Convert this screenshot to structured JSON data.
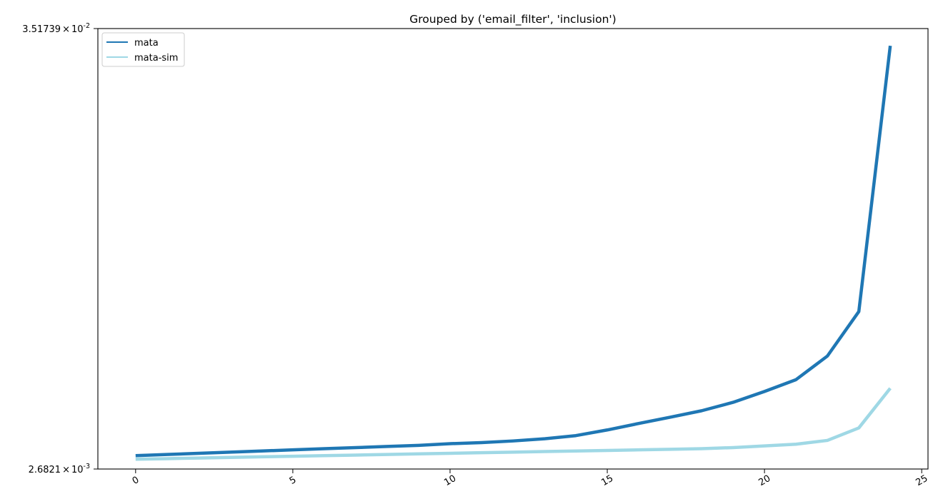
{
  "chart_data": {
    "type": "line",
    "title": "Grouped by ('email_filter', 'inclusion')",
    "xlabel": "",
    "ylabel": "",
    "yscale": "log",
    "xlim": [
      -1.2,
      25.2
    ],
    "ylim": [
      0.0026821,
      0.0351739
    ],
    "x_ticks": [
      0,
      5,
      10,
      15,
      20,
      25
    ],
    "y_tick_labels": [
      {
        "mantissa": "3.51739",
        "exponent": "-2",
        "value": 0.0351739
      },
      {
        "mantissa": "2.6821",
        "exponent": "-3",
        "value": 0.0026821
      }
    ],
    "legend_position": "upper left",
    "grid": false,
    "x": [
      0,
      1,
      2,
      3,
      4,
      5,
      6,
      7,
      8,
      9,
      10,
      11,
      12,
      13,
      14,
      15,
      16,
      17,
      18,
      19,
      20,
      21,
      22,
      23,
      24
    ],
    "series": [
      {
        "name": "mata",
        "color": "#1f77b4",
        "values": [
          0.0029,
          0.00292,
          0.00294,
          0.00296,
          0.00298,
          0.003,
          0.00302,
          0.00304,
          0.00306,
          0.00308,
          0.00311,
          0.00313,
          0.00316,
          0.0032,
          0.00326,
          0.00337,
          0.0035,
          0.00363,
          0.00377,
          0.00396,
          0.00422,
          0.00452,
          0.00519,
          0.00673,
          0.0318
        ]
      },
      {
        "name": "mata-sim",
        "color": "#9fd8e5",
        "values": [
          0.00284,
          0.00285,
          0.00286,
          0.00287,
          0.00288,
          0.00289,
          0.0029,
          0.00291,
          0.00292,
          0.00293,
          0.00294,
          0.00295,
          0.00296,
          0.00297,
          0.00298,
          0.00299,
          0.003,
          0.00301,
          0.00302,
          0.00304,
          0.00307,
          0.0031,
          0.00317,
          0.00341,
          0.0043
        ]
      }
    ]
  }
}
